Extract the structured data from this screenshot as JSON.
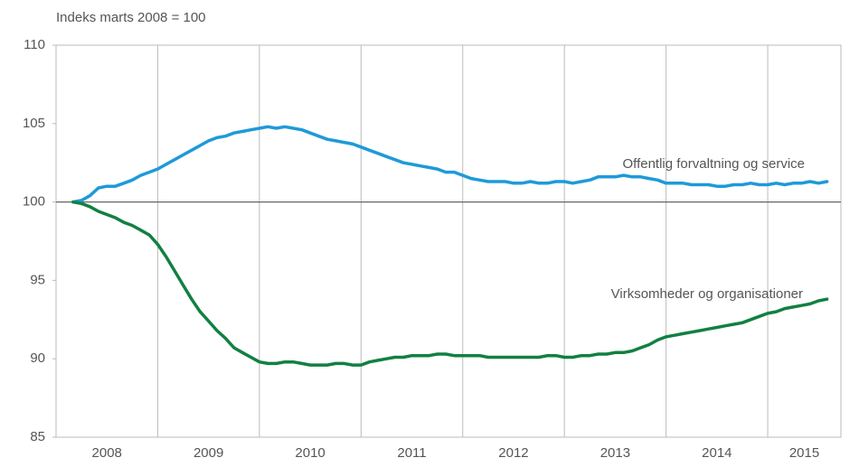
{
  "chart_data": {
    "type": "line",
    "title": "Indeks marts 2008 = 100",
    "x": [
      2008.167,
      2008.25,
      2008.333,
      2008.417,
      2008.5,
      2008.583,
      2008.667,
      2008.75,
      2008.833,
      2008.917,
      2009,
      2009.083,
      2009.167,
      2009.25,
      2009.333,
      2009.417,
      2009.5,
      2009.583,
      2009.667,
      2009.75,
      2009.833,
      2009.917,
      2010,
      2010.083,
      2010.167,
      2010.25,
      2010.333,
      2010.417,
      2010.5,
      2010.583,
      2010.667,
      2010.75,
      2010.833,
      2010.917,
      2011,
      2011.083,
      2011.167,
      2011.25,
      2011.333,
      2011.417,
      2011.5,
      2011.583,
      2011.667,
      2011.75,
      2011.833,
      2011.917,
      2012,
      2012.083,
      2012.167,
      2012.25,
      2012.333,
      2012.417,
      2012.5,
      2012.583,
      2012.667,
      2012.75,
      2012.833,
      2012.917,
      2013,
      2013.083,
      2013.167,
      2013.25,
      2013.333,
      2013.417,
      2013.5,
      2013.583,
      2013.667,
      2013.75,
      2013.833,
      2013.917,
      2014,
      2014.083,
      2014.167,
      2014.25,
      2014.333,
      2014.417,
      2014.5,
      2014.583,
      2014.667,
      2014.75,
      2014.833,
      2014.917,
      2015,
      2015.083,
      2015.167,
      2015.25,
      2015.333,
      2015.417,
      2015.5,
      2015.583
    ],
    "series": [
      {
        "name": "Offentlig forvaltning og service",
        "color": "#1e9ad8",
        "values": [
          100,
          100.1,
          100.4,
          100.9,
          101,
          101,
          101.2,
          101.4,
          101.7,
          101.9,
          102.1,
          102.4,
          102.7,
          103,
          103.3,
          103.6,
          103.9,
          104.1,
          104.2,
          104.4,
          104.5,
          104.6,
          104.7,
          104.8,
          104.7,
          104.8,
          104.7,
          104.6,
          104.4,
          104.2,
          104,
          103.9,
          103.8,
          103.7,
          103.5,
          103.3,
          103.1,
          102.9,
          102.7,
          102.5,
          102.4,
          102.3,
          102.2,
          102.1,
          101.9,
          101.9,
          101.7,
          101.5,
          101.4,
          101.3,
          101.3,
          101.3,
          101.2,
          101.2,
          101.3,
          101.2,
          101.2,
          101.3,
          101.3,
          101.2,
          101.3,
          101.4,
          101.6,
          101.6,
          101.6,
          101.7,
          101.6,
          101.6,
          101.5,
          101.4,
          101.2,
          101.2,
          101.2,
          101.1,
          101.1,
          101.1,
          101,
          101,
          101.1,
          101.1,
          101.2,
          101.1,
          101.1,
          101.2,
          101.1,
          101.2,
          101.2,
          101.3,
          101.2,
          101.3
        ]
      },
      {
        "name": "Virksomheder og organisationer",
        "color": "#128042",
        "values": [
          100,
          99.9,
          99.7,
          99.4,
          99.2,
          99,
          98.7,
          98.5,
          98.2,
          97.9,
          97.3,
          96.5,
          95.6,
          94.7,
          93.8,
          93,
          92.4,
          91.8,
          91.3,
          90.7,
          90.4,
          90.1,
          89.8,
          89.7,
          89.7,
          89.8,
          89.8,
          89.7,
          89.6,
          89.6,
          89.6,
          89.7,
          89.7,
          89.6,
          89.6,
          89.8,
          89.9,
          90,
          90.1,
          90.1,
          90.2,
          90.2,
          90.2,
          90.3,
          90.3,
          90.2,
          90.2,
          90.2,
          90.2,
          90.1,
          90.1,
          90.1,
          90.1,
          90.1,
          90.1,
          90.1,
          90.2,
          90.2,
          90.1,
          90.1,
          90.2,
          90.2,
          90.3,
          90.3,
          90.4,
          90.4,
          90.5,
          90.7,
          90.9,
          91.2,
          91.4,
          91.5,
          91.6,
          91.7,
          91.8,
          91.9,
          92,
          92.1,
          92.2,
          92.3,
          92.5,
          92.7,
          92.9,
          93,
          93.2,
          93.3,
          93.4,
          93.5,
          93.7,
          93.8
        ]
      }
    ],
    "xlim": [
      2008,
      2015.72
    ],
    "xticks": [
      2008,
      2009,
      2010,
      2011,
      2012,
      2013,
      2014,
      2015
    ],
    "ylim": [
      85,
      110
    ],
    "yticks": [
      85,
      90,
      95,
      100,
      105,
      110
    ],
    "hline": 100
  }
}
